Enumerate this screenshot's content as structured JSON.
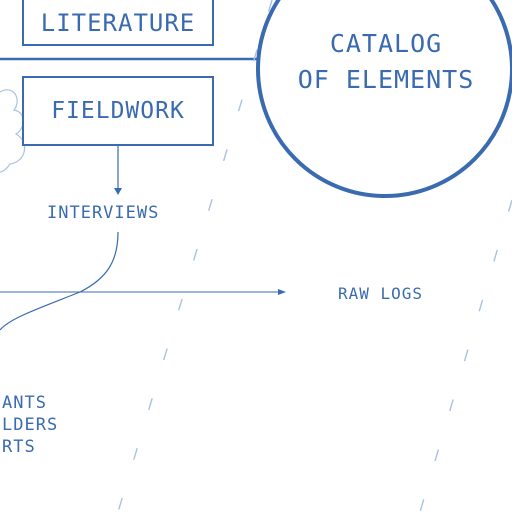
{
  "diagram": {
    "stroke_color": "#3a6bb0",
    "faint_color": "#a9c2e2",
    "background": "#ffffff",
    "nodes": {
      "literature": "LITERATURE",
      "fieldwork": "FIELDWORK",
      "interviews": "INTERVIEWS",
      "raw_logs": "RAW LOGS",
      "catalog_line1": "CATALOG",
      "catalog_line2": "OF ELEMENTS"
    },
    "partial_labels": [
      "ANTS",
      "LDERS",
      "RTS"
    ]
  }
}
